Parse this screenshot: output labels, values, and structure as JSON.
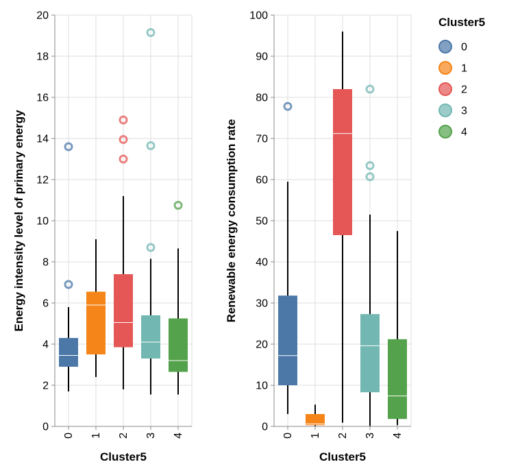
{
  "chart_data": [
    {
      "type": "boxplot",
      "xlabel": "Cluster5",
      "ylabel": "Energy intensity level of primary energy",
      "ylim": [
        0,
        20
      ],
      "yticks": [
        0,
        2,
        4,
        6,
        8,
        10,
        12,
        14,
        16,
        18,
        20
      ],
      "grid": true,
      "categories": [
        "0",
        "1",
        "2",
        "3",
        "4"
      ],
      "boxes": [
        {
          "category": "0",
          "min": 1.7,
          "q1": 2.9,
          "median": 3.45,
          "q3": 4.3,
          "max": 5.8,
          "outliers": [
            6.9,
            13.6
          ]
        },
        {
          "category": "1",
          "min": 2.4,
          "q1": 3.5,
          "median": 5.9,
          "q3": 6.55,
          "max": 9.1,
          "outliers": []
        },
        {
          "category": "2",
          "min": 1.8,
          "q1": 3.85,
          "median": 5.05,
          "q3": 7.4,
          "max": 11.2,
          "outliers": [
            13.0,
            13.95,
            14.9
          ]
        },
        {
          "category": "3",
          "min": 1.55,
          "q1": 3.3,
          "median": 4.1,
          "q3": 5.4,
          "max": 8.15,
          "outliers": [
            8.7,
            13.65,
            19.15
          ]
        },
        {
          "category": "4",
          "min": 1.55,
          "q1": 2.65,
          "median": 3.2,
          "q3": 5.25,
          "max": 8.65,
          "outliers": [
            10.75
          ]
        }
      ]
    },
    {
      "type": "boxplot",
      "xlabel": "Cluster5",
      "ylabel": "Renewable energy consumption rate",
      "ylim": [
        0,
        100
      ],
      "yticks": [
        0,
        10,
        20,
        30,
        40,
        50,
        60,
        70,
        80,
        90,
        100
      ],
      "grid": true,
      "categories": [
        "0",
        "1",
        "2",
        "3",
        "4"
      ],
      "boxes": [
        {
          "category": "0",
          "min": 3.0,
          "q1": 10.0,
          "median": 17.2,
          "q3": 31.8,
          "max": 59.5,
          "outliers": [
            77.8
          ]
        },
        {
          "category": "1",
          "min": 0.1,
          "q1": 0.3,
          "median": 0.6,
          "q3": 3.0,
          "max": 5.3,
          "outliers": []
        },
        {
          "category": "2",
          "min": 0.9,
          "q1": 46.5,
          "median": 71.2,
          "q3": 82.0,
          "max": 96.0,
          "outliers": []
        },
        {
          "category": "3",
          "min": 0.1,
          "q1": 8.3,
          "median": 19.6,
          "q3": 27.3,
          "max": 51.5,
          "outliers": [
            60.7,
            63.4,
            82.0
          ]
        },
        {
          "category": "4",
          "min": 0.3,
          "q1": 1.8,
          "median": 7.4,
          "q3": 21.2,
          "max": 47.5,
          "outliers": []
        }
      ]
    }
  ],
  "legend": {
    "title": "Cluster5",
    "placement": "right",
    "items": [
      {
        "label": "0",
        "color": "#4c78a8"
      },
      {
        "label": "1",
        "color": "#f58518"
      },
      {
        "label": "2",
        "color": "#e45756"
      },
      {
        "label": "3",
        "color": "#72b7b2"
      },
      {
        "label": "4",
        "color": "#54a24b"
      }
    ]
  },
  "colors": {
    "median_line": "#ffffff",
    "whisker": "#000000",
    "grid": "#dddddd",
    "axis": "#888888"
  }
}
